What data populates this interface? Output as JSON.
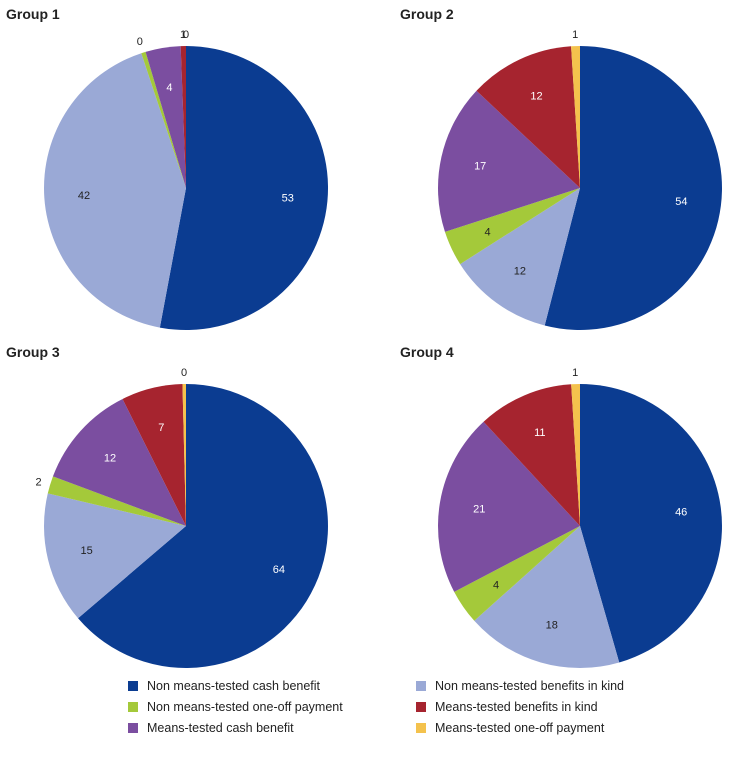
{
  "legend": [
    {
      "label": "Non means-tested cash benefit",
      "color": "#0b3c91"
    },
    {
      "label": "Non means-tested benefits in kind",
      "color": "#9aa9d6"
    },
    {
      "label": "Non means-tested one-off payment",
      "color": "#a4c93a"
    },
    {
      "label": "Means-tested benefits in kind",
      "color": "#a6242f"
    },
    {
      "label": "Means-tested cash benefit",
      "color": "#7b4ea0"
    },
    {
      "label": "Means-tested one-off payment",
      "color": "#f4c24d"
    }
  ],
  "chart_data": [
    {
      "type": "pie",
      "title": "Group 1",
      "slices": [
        {
          "category": "Non means-tested cash benefit",
          "value": 53,
          "label": "53"
        },
        {
          "category": "Non means-tested benefits in kind",
          "value": 42,
          "label": "42"
        },
        {
          "category": "Non means-tested one-off payment",
          "value": 0.5,
          "label": "0"
        },
        {
          "category": "Means-tested cash benefit",
          "value": 4,
          "label": "4"
        },
        {
          "category": "Means-tested benefits in kind",
          "value": 0.6,
          "label": "1"
        },
        {
          "category": "Means-tested one-off payment",
          "value": 0,
          "label": "0"
        }
      ]
    },
    {
      "type": "pie",
      "title": "Group 2",
      "slices": [
        {
          "category": "Non means-tested cash benefit",
          "value": 54,
          "label": "54"
        },
        {
          "category": "Non means-tested benefits in kind",
          "value": 12,
          "label": "12"
        },
        {
          "category": "Non means-tested one-off payment",
          "value": 4,
          "label": "4"
        },
        {
          "category": "Means-tested cash benefit",
          "value": 17,
          "label": "17"
        },
        {
          "category": "Means-tested benefits in kind",
          "value": 12,
          "label": "12"
        },
        {
          "category": "Means-tested one-off payment",
          "value": 1,
          "label": "1"
        }
      ]
    },
    {
      "type": "pie",
      "title": "Group 3",
      "slices": [
        {
          "category": "Non means-tested cash benefit",
          "value": 64,
          "label": "64"
        },
        {
          "category": "Non means-tested benefits in kind",
          "value": 15,
          "label": "15"
        },
        {
          "category": "Non means-tested one-off payment",
          "value": 2,
          "label": "2"
        },
        {
          "category": "Means-tested cash benefit",
          "value": 12,
          "label": "12"
        },
        {
          "category": "Means-tested benefits in kind",
          "value": 7,
          "label": "7"
        },
        {
          "category": "Means-tested one-off payment",
          "value": 0.4,
          "label": "0"
        }
      ]
    },
    {
      "type": "pie",
      "title": "Group 4",
      "slices": [
        {
          "category": "Non means-tested cash benefit",
          "value": 46,
          "label": "46"
        },
        {
          "category": "Non means-tested benefits in kind",
          "value": 18,
          "label": "18"
        },
        {
          "category": "Non means-tested one-off payment",
          "value": 4,
          "label": "4"
        },
        {
          "category": "Means-tested cash benefit",
          "value": 21,
          "label": "21"
        },
        {
          "category": "Means-tested benefits in kind",
          "value": 11,
          "label": "11"
        },
        {
          "category": "Means-tested one-off payment",
          "value": 1,
          "label": "1"
        }
      ]
    }
  ]
}
